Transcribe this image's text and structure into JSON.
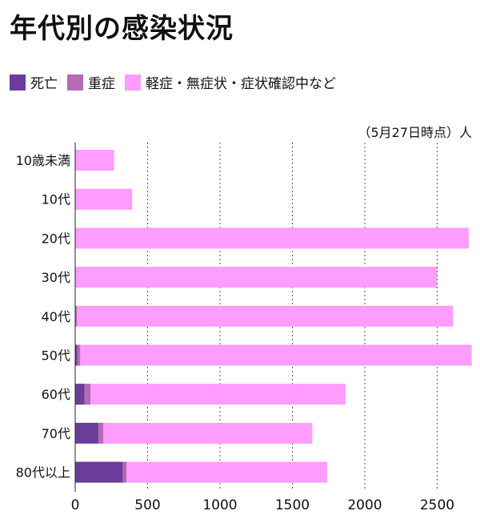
{
  "chart_data": {
    "type": "bar",
    "orientation": "horizontal",
    "stacked": true,
    "title": "年代別の感染状況",
    "note": "（5月27日時点）人",
    "categories": [
      "10歳未満",
      "10代",
      "20代",
      "30代",
      "40代",
      "50代",
      "60代",
      "70代",
      "80代以上"
    ],
    "series": [
      {
        "name": "死亡",
        "color": "#6a3d9a",
        "values": [
          0,
          0,
          0,
          0,
          2,
          15,
          65,
          160,
          330
        ]
      },
      {
        "name": "重症",
        "color": "#b46ab4",
        "values": [
          0,
          0,
          0,
          0,
          10,
          20,
          40,
          35,
          25
        ]
      },
      {
        "name": "軽症・無症状・症状確認中など",
        "color": "#ff9cff",
        "values": [
          268,
          393,
          2718,
          2498,
          2598,
          2703,
          1762,
          1443,
          1385
        ]
      }
    ],
    "xlim": [
      0,
      2750
    ],
    "xticks": [
      0,
      500,
      1000,
      1500,
      2000,
      2500
    ],
    "grid": "vertical-dotted",
    "legend_position": "top-left"
  }
}
